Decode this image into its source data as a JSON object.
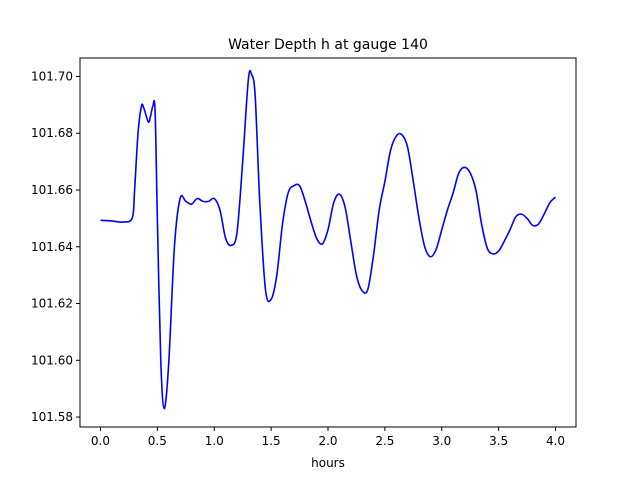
{
  "chart_data": {
    "type": "line",
    "title": "Water Depth h at gauge 140",
    "xlabel": "hours",
    "ylabel": "",
    "xlim": [
      -0.18,
      4.18
    ],
    "ylim": [
      101.5765,
      101.7065
    ],
    "xticks": [
      0.0,
      0.5,
      1.0,
      1.5,
      2.0,
      2.5,
      3.0,
      3.5,
      4.0
    ],
    "xtick_labels": [
      "0.0",
      "0.5",
      "1.0",
      "1.5",
      "2.0",
      "2.5",
      "3.0",
      "3.5",
      "4.0"
    ],
    "yticks": [
      101.58,
      101.6,
      101.62,
      101.64,
      101.66,
      101.68,
      101.7
    ],
    "ytick_labels": [
      "101.58",
      "101.60",
      "101.62",
      "101.64",
      "101.66",
      "101.68",
      "101.70"
    ],
    "grid": false,
    "series": [
      {
        "color": "#0000ff",
        "x": [
          0.0,
          0.1,
          0.2,
          0.28,
          0.3,
          0.33,
          0.36,
          0.38,
          0.42,
          0.44,
          0.46,
          0.48,
          0.5,
          0.53,
          0.56,
          0.6,
          0.65,
          0.7,
          0.75,
          0.8,
          0.85,
          0.9,
          0.95,
          1.0,
          1.05,
          1.1,
          1.15,
          1.2,
          1.25,
          1.3,
          1.33,
          1.36,
          1.4,
          1.45,
          1.5,
          1.55,
          1.6,
          1.65,
          1.7,
          1.75,
          1.8,
          1.85,
          1.9,
          1.95,
          2.0,
          2.05,
          2.1,
          2.15,
          2.2,
          2.25,
          2.3,
          2.35,
          2.4,
          2.45,
          2.5,
          2.55,
          2.6,
          2.65,
          2.7,
          2.75,
          2.8,
          2.85,
          2.9,
          2.95,
          3.0,
          3.05,
          3.1,
          3.15,
          3.2,
          3.25,
          3.3,
          3.35,
          3.4,
          3.45,
          3.5,
          3.55,
          3.6,
          3.65,
          3.7,
          3.75,
          3.8,
          3.85,
          3.9,
          3.95,
          4.0
        ],
        "y": [
          101.6493,
          101.6491,
          101.6487,
          101.6502,
          101.66,
          101.68,
          101.6895,
          101.689,
          101.684,
          101.686,
          101.6895,
          101.688,
          101.65,
          101.6,
          101.583,
          101.599,
          101.64,
          101.657,
          101.656,
          101.655,
          101.657,
          101.656,
          101.656,
          101.657,
          101.653,
          101.643,
          101.6405,
          101.645,
          101.67,
          101.699,
          101.7005,
          101.693,
          101.656,
          101.625,
          101.6215,
          101.63,
          101.648,
          101.659,
          101.6615,
          101.6615,
          101.656,
          101.649,
          101.643,
          101.641,
          101.646,
          101.6555,
          101.6585,
          101.654,
          101.642,
          101.63,
          101.6245,
          101.625,
          101.637,
          101.653,
          101.663,
          101.674,
          101.679,
          101.6795,
          101.675,
          101.663,
          101.65,
          101.64,
          101.6365,
          101.639,
          101.646,
          101.653,
          101.659,
          101.666,
          101.668,
          101.666,
          101.66,
          101.648,
          101.6395,
          101.6375,
          101.6385,
          101.642,
          101.646,
          101.6505,
          101.6515,
          101.65,
          101.6475,
          101.648,
          101.6515,
          101.6555,
          101.6575
        ]
      }
    ]
  }
}
